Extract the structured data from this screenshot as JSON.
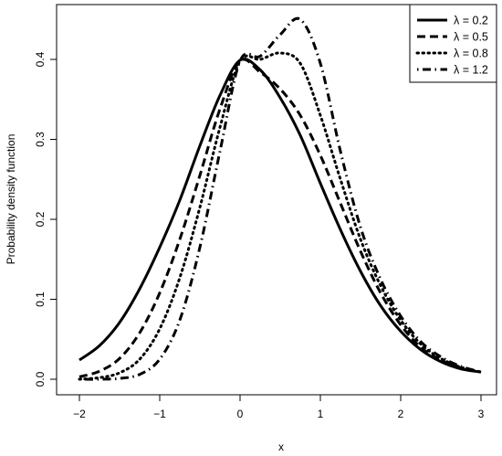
{
  "chart_data": {
    "type": "line",
    "xlabel": "x",
    "ylabel": "Probability density function",
    "xlim": [
      -2,
      3
    ],
    "ylim": [
      0,
      0.45
    ],
    "xticks": [
      -2,
      -1,
      0,
      1,
      2,
      3
    ],
    "yticks": [
      0.0,
      0.1,
      0.2,
      0.3,
      0.4
    ],
    "xtick_labels": [
      "−2",
      "−1",
      "0",
      "1",
      "2",
      "3"
    ],
    "ytick_labels": [
      "0.0",
      "0.1",
      "0.2",
      "0.3",
      "0.4"
    ],
    "grid": false,
    "legend_position": "top-right",
    "series": [
      {
        "name": "λ = 0.2",
        "line_style": "solid",
        "x": [
          -2.0,
          -1.75,
          -1.5,
          -1.25,
          -1.0,
          -0.75,
          -0.5,
          -0.25,
          0.0,
          0.25,
          0.5,
          0.75,
          1.0,
          1.25,
          1.5,
          1.75,
          2.0,
          2.25,
          2.5,
          2.75,
          3.0
        ],
        "y": [
          0.024,
          0.042,
          0.071,
          0.113,
          0.165,
          0.224,
          0.292,
          0.355,
          0.399,
          0.387,
          0.352,
          0.305,
          0.245,
          0.187,
          0.135,
          0.092,
          0.06,
          0.037,
          0.022,
          0.013,
          0.009
        ]
      },
      {
        "name": "λ = 0.5",
        "line_style": "dashed",
        "x": [
          -2.0,
          -1.75,
          -1.5,
          -1.25,
          -1.0,
          -0.75,
          -0.5,
          -0.25,
          0.0,
          0.25,
          0.5,
          0.75,
          1.0,
          1.25,
          1.5,
          1.75,
          2.0,
          2.25,
          2.5,
          2.75,
          3.0
        ],
        "y": [
          0.003,
          0.01,
          0.026,
          0.058,
          0.108,
          0.175,
          0.255,
          0.338,
          0.398,
          0.384,
          0.363,
          0.33,
          0.28,
          0.22,
          0.16,
          0.108,
          0.068,
          0.04,
          0.024,
          0.014,
          0.009
        ]
      },
      {
        "name": "λ = 0.8",
        "line_style": "dotted",
        "x": [
          -2.0,
          -1.75,
          -1.5,
          -1.25,
          -1.0,
          -0.75,
          -0.5,
          -0.25,
          0.0,
          0.25,
          0.5,
          0.75,
          1.0,
          1.25,
          1.5,
          1.75,
          2.0,
          2.25,
          2.5,
          2.75,
          3.0
        ],
        "y": [
          0.0,
          0.002,
          0.008,
          0.025,
          0.063,
          0.127,
          0.215,
          0.315,
          0.398,
          0.4,
          0.408,
          0.395,
          0.33,
          0.25,
          0.175,
          0.117,
          0.074,
          0.044,
          0.026,
          0.015,
          0.009
        ]
      },
      {
        "name": "λ = 1.2",
        "line_style": "dotdash",
        "x": [
          -2.0,
          -1.75,
          -1.5,
          -1.25,
          -1.0,
          -0.75,
          -0.5,
          -0.25,
          0.0,
          0.25,
          0.5,
          0.75,
          1.0,
          1.25,
          1.5,
          1.75,
          2.0,
          2.25,
          2.5,
          2.75,
          3.0
        ],
        "y": [
          0.0,
          0.0,
          0.001,
          0.006,
          0.025,
          0.074,
          0.165,
          0.285,
          0.398,
          0.404,
          0.431,
          0.45,
          0.395,
          0.285,
          0.19,
          0.125,
          0.079,
          0.047,
          0.028,
          0.016,
          0.009
        ]
      }
    ]
  }
}
